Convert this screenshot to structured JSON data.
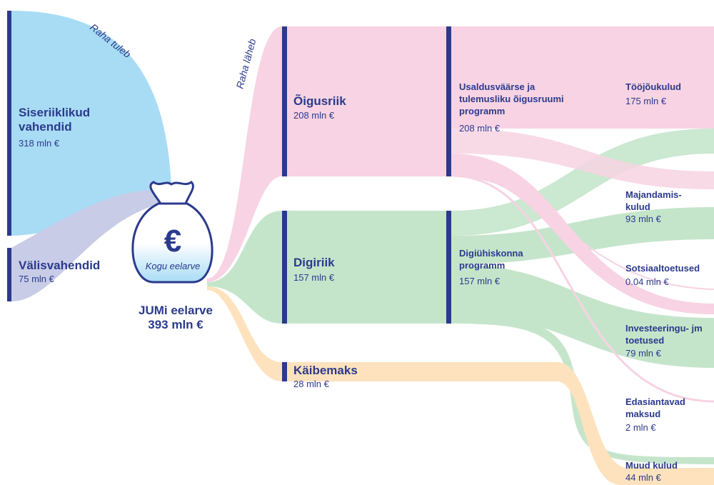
{
  "labels": {
    "income": "Raha tuleb",
    "spending": "Raha läheb"
  },
  "sources": [
    {
      "label": "Siseriiklikud vahendid",
      "amount": "318 mln €"
    },
    {
      "label": "Välisvahendid",
      "amount": "75 mln €"
    }
  ],
  "center": {
    "symbol": "€",
    "bag_label": "Kogu eelarve",
    "title": "JUMi eelarve",
    "amount": "393 mln €"
  },
  "areas": [
    {
      "label": "Õigusriik",
      "amount": "208 mln €"
    },
    {
      "label": "Digiriik",
      "amount": "157 mln €"
    },
    {
      "label": "Käibemaks",
      "amount": "28 mln €"
    }
  ],
  "programs": [
    {
      "label": "Usaldusväärse ja tulemusliku õigusruumi programm",
      "amount": "208 mln €"
    },
    {
      "label": "Digiühiskonna programm",
      "amount": "157 mln €"
    }
  ],
  "costs": [
    {
      "label": "Tööjõukulud",
      "amount": "175 mln €"
    },
    {
      "label": "Majandamis-kulud",
      "amount": "93 mln €"
    },
    {
      "label": "Sotsiaaltoetused",
      "amount": "0.04 mln €"
    },
    {
      "label": "Investeeringu- jm toetused",
      "amount": "79 mln €"
    },
    {
      "label": "Edasiantavad maksud",
      "amount": "2 mln €"
    },
    {
      "label": "Muud kulud",
      "amount": "44 mln €"
    }
  ]
}
